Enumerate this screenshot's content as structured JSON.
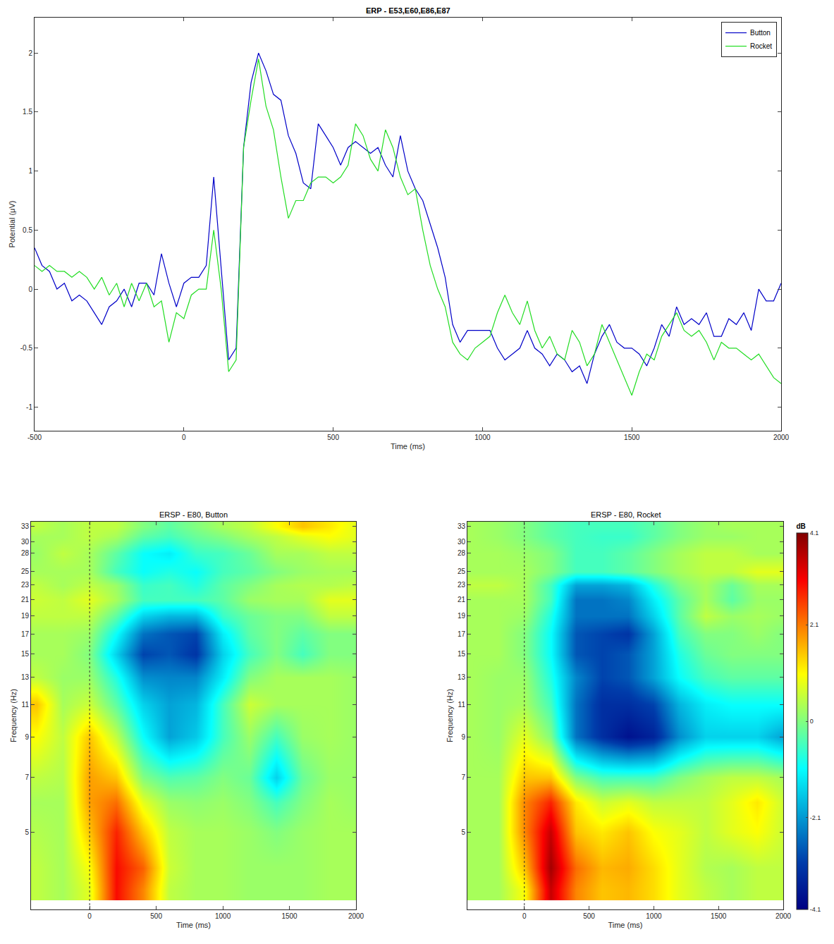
{
  "chart_data": [
    {
      "type": "line",
      "title": "ERP - E53,E60,E86,E87",
      "x_label": "Time (ms)",
      "y_label": "Potential (μV)",
      "x": [
        -500,
        -475,
        -450,
        -425,
        -400,
        -375,
        -350,
        -325,
        -300,
        -275,
        -250,
        -225,
        -200,
        -175,
        -150,
        -125,
        -100,
        -75,
        -50,
        -25,
        0,
        25,
        50,
        75,
        100,
        125,
        150,
        175,
        200,
        225,
        250,
        275,
        300,
        325,
        350,
        375,
        400,
        425,
        450,
        475,
        500,
        525,
        550,
        575,
        600,
        625,
        650,
        675,
        700,
        725,
        750,
        775,
        800,
        825,
        850,
        875,
        900,
        925,
        950,
        975,
        1000,
        1025,
        1050,
        1075,
        1100,
        1125,
        1150,
        1175,
        1200,
        1225,
        1250,
        1275,
        1300,
        1325,
        1350,
        1375,
        1400,
        1425,
        1450,
        1475,
        1500,
        1525,
        1550,
        1575,
        1600,
        1625,
        1650,
        1675,
        1700,
        1725,
        1750,
        1775,
        1800,
        1825,
        1850,
        1875,
        1900,
        1925,
        1950,
        1975,
        2000
      ],
      "series": [
        {
          "name": "Button",
          "color": "#0000c8",
          "values": [
            0.35,
            0.2,
            0.15,
            0.0,
            0.05,
            -0.1,
            -0.05,
            -0.1,
            -0.2,
            -0.3,
            -0.15,
            -0.1,
            0.0,
            -0.15,
            0.05,
            0.05,
            -0.05,
            0.3,
            0.05,
            -0.15,
            0.05,
            0.1,
            0.1,
            0.2,
            0.95,
            0.2,
            -0.6,
            -0.5,
            1.2,
            1.75,
            2.0,
            1.85,
            1.65,
            1.6,
            1.3,
            1.15,
            0.9,
            0.85,
            1.4,
            1.3,
            1.2,
            1.05,
            1.2,
            1.25,
            1.2,
            1.15,
            1.2,
            1.05,
            0.95,
            1.3,
            1.0,
            0.85,
            0.75,
            0.55,
            0.35,
            0.1,
            -0.3,
            -0.45,
            -0.35,
            -0.35,
            -0.35,
            -0.35,
            -0.5,
            -0.6,
            -0.55,
            -0.5,
            -0.35,
            -0.5,
            -0.55,
            -0.65,
            -0.55,
            -0.6,
            -0.7,
            -0.65,
            -0.8,
            -0.55,
            -0.4,
            -0.3,
            -0.45,
            -0.5,
            -0.5,
            -0.55,
            -0.65,
            -0.5,
            -0.3,
            -0.4,
            -0.15,
            -0.3,
            -0.25,
            -0.3,
            -0.2,
            -0.4,
            -0.4,
            -0.25,
            -0.3,
            -0.2,
            -0.35,
            0.0,
            -0.1,
            -0.1,
            0.05
          ]
        },
        {
          "name": "Rocket",
          "color": "#22dd22",
          "values": [
            0.2,
            0.15,
            0.2,
            0.15,
            0.15,
            0.1,
            0.15,
            0.1,
            0.0,
            0.1,
            -0.05,
            0.05,
            -0.15,
            0.05,
            -0.1,
            0.05,
            -0.15,
            -0.1,
            -0.45,
            -0.2,
            -0.25,
            -0.05,
            0.0,
            0.0,
            0.5,
            0.0,
            -0.7,
            -0.6,
            1.2,
            1.6,
            1.95,
            1.55,
            1.35,
            0.95,
            0.6,
            0.75,
            0.75,
            0.9,
            0.95,
            0.95,
            0.9,
            0.95,
            1.05,
            1.4,
            1.3,
            1.1,
            1.0,
            1.35,
            1.2,
            0.95,
            0.8,
            0.85,
            0.5,
            0.2,
            0.0,
            -0.15,
            -0.45,
            -0.55,
            -0.6,
            -0.5,
            -0.45,
            -0.4,
            -0.2,
            -0.05,
            -0.2,
            -0.3,
            -0.1,
            -0.35,
            -0.5,
            -0.4,
            -0.55,
            -0.6,
            -0.35,
            -0.45,
            -0.65,
            -0.55,
            -0.3,
            -0.45,
            -0.6,
            -0.75,
            -0.9,
            -0.7,
            -0.55,
            -0.6,
            -0.4,
            -0.3,
            -0.2,
            -0.35,
            -0.4,
            -0.35,
            -0.45,
            -0.6,
            -0.45,
            -0.5,
            -0.5,
            -0.55,
            -0.6,
            -0.55,
            -0.65,
            -0.75,
            -0.8
          ]
        }
      ],
      "xlim": [
        -500,
        2000
      ],
      "xticks": [
        -500,
        0,
        500,
        1000,
        1500,
        2000
      ],
      "ylim": [
        -1.2,
        2.3
      ],
      "yticks": [
        -1,
        -0.5,
        0,
        0.5,
        1,
        1.5,
        2
      ],
      "legend": "top-right",
      "grid": false
    },
    {
      "type": "heatmap",
      "title": "ERSP - E80, Button",
      "x_label": "Time (ms)",
      "y_label": "Frequency (Hz)",
      "x": [
        -400,
        -200,
        0,
        200,
        400,
        600,
        800,
        1000,
        1200,
        1400,
        1600,
        1800,
        2000
      ],
      "y": [
        3.5,
        4,
        5,
        6,
        7,
        9,
        11,
        13,
        15,
        17,
        19,
        21,
        23,
        25,
        28,
        31,
        33
      ],
      "z": [
        [
          0.5,
          0.3,
          0.8,
          3.0,
          2.0,
          0.5,
          0.3,
          0.3,
          0.2,
          0.2,
          0.2,
          0.3,
          0.3
        ],
        [
          0.5,
          0.3,
          1.0,
          3.0,
          2.3,
          0.6,
          0.3,
          0.3,
          0.2,
          0.2,
          0.2,
          0.3,
          0.3
        ],
        [
          0.4,
          0.3,
          1.5,
          2.8,
          1.5,
          0.5,
          0.3,
          0.3,
          0.2,
          0.0,
          0.2,
          0.3,
          0.3
        ],
        [
          0.3,
          0.3,
          1.8,
          2.2,
          0.8,
          0.2,
          0.1,
          0.2,
          0.0,
          -0.5,
          0.0,
          0.3,
          0.2
        ],
        [
          0.5,
          0.4,
          1.8,
          1.5,
          0.0,
          -0.4,
          -0.3,
          0.0,
          -0.2,
          -1.5,
          -0.2,
          0.2,
          0.2
        ],
        [
          1.0,
          0.5,
          1.5,
          0.5,
          -1.0,
          -2.0,
          -1.6,
          -0.5,
          0.2,
          -0.5,
          0.2,
          0.3,
          0.2
        ],
        [
          1.5,
          0.3,
          0.6,
          -0.3,
          -1.5,
          -2.0,
          -1.8,
          -0.5,
          0.6,
          0.3,
          0.3,
          0.3,
          0.2
        ],
        [
          0.5,
          0.2,
          0.2,
          -0.8,
          -2.2,
          -2.3,
          -2.3,
          -1.2,
          0.0,
          0.3,
          0.3,
          0.3,
          0.2
        ],
        [
          0.3,
          0.3,
          0.0,
          -1.5,
          -3.0,
          -2.8,
          -3.2,
          -1.5,
          -0.5,
          0.0,
          -0.5,
          0.0,
          0.0
        ],
        [
          0.3,
          0.3,
          0.2,
          -1.0,
          -2.5,
          -2.8,
          -3.0,
          -1.2,
          -0.3,
          0.0,
          -0.3,
          0.0,
          0.0
        ],
        [
          0.5,
          0.5,
          0.5,
          -0.3,
          -1.5,
          -1.8,
          -1.8,
          -0.6,
          -0.2,
          0.0,
          0.0,
          0.5,
          0.5
        ],
        [
          0.6,
          0.5,
          0.8,
          0.3,
          -0.5,
          -0.5,
          -0.5,
          -0.3,
          0.2,
          0.3,
          0.3,
          0.8,
          0.8
        ],
        [
          0.5,
          0.3,
          0.5,
          0.2,
          -0.6,
          -0.5,
          -0.8,
          -0.3,
          0.0,
          0.3,
          0.4,
          0.4,
          0.5
        ],
        [
          0.3,
          0.3,
          0.3,
          -0.5,
          -1.0,
          -0.8,
          -1.0,
          -0.5,
          -0.3,
          0.0,
          0.2,
          0.3,
          0.3
        ],
        [
          0.2,
          0.5,
          0.3,
          -0.3,
          -1.0,
          -1.2,
          -0.6,
          -0.5,
          -0.2,
          0.3,
          0.3,
          0.5,
          0.5
        ],
        [
          0.3,
          0.3,
          0.5,
          0.3,
          -0.3,
          -0.5,
          -0.2,
          0.0,
          0.3,
          0.5,
          0.8,
          1.0,
          0.8
        ],
        [
          0.5,
          0.3,
          0.5,
          0.5,
          0.0,
          -0.3,
          0.0,
          0.3,
          0.5,
          1.0,
          1.5,
          1.2,
          0.8
        ]
      ],
      "xlim": [
        -440,
        2000
      ],
      "xticks": [
        0,
        500,
        1000,
        1500,
        2000
      ],
      "ylim": [
        3.1,
        34
      ],
      "yticks": [
        5,
        7,
        9,
        11,
        13,
        15,
        17,
        19,
        21,
        23,
        25,
        28,
        30,
        33
      ],
      "log": "y",
      "events": [
        0
      ],
      "colorbar": {
        "range": [
          -4.1,
          4.1
        ]
      }
    },
    {
      "type": "heatmap",
      "title": "ERSP - E80, Rocket",
      "x_label": "Time (ms)",
      "y_label": "Frequency (Hz)",
      "x": [
        -400,
        -200,
        0,
        200,
        400,
        600,
        800,
        1000,
        1200,
        1400,
        1600,
        1800,
        2000
      ],
      "y": [
        3.5,
        4,
        5,
        6,
        7,
        9,
        11,
        13,
        15,
        17,
        19,
        21,
        23,
        25,
        28,
        31,
        33
      ],
      "z": [
        [
          0.3,
          0.3,
          1.0,
          3.5,
          2.0,
          1.5,
          1.6,
          1.3,
          0.8,
          0.5,
          0.3,
          0.5,
          0.5
        ],
        [
          0.3,
          0.3,
          1.5,
          3.8,
          2.2,
          1.6,
          1.7,
          1.3,
          0.8,
          0.4,
          0.3,
          0.5,
          0.5
        ],
        [
          0.3,
          0.3,
          2.0,
          3.5,
          1.5,
          1.2,
          1.5,
          1.0,
          0.8,
          0.5,
          0.8,
          1.0,
          0.6
        ],
        [
          0.3,
          0.3,
          2.0,
          2.8,
          1.2,
          0.6,
          0.8,
          0.5,
          0.5,
          0.5,
          0.8,
          1.2,
          0.6
        ],
        [
          0.3,
          0.3,
          1.5,
          1.5,
          0.0,
          -0.5,
          -0.5,
          -0.5,
          0.0,
          0.3,
          0.5,
          0.5,
          0.3
        ],
        [
          0.3,
          0.2,
          0.8,
          0.0,
          -2.5,
          -3.3,
          -3.8,
          -3.5,
          -2.2,
          -1.5,
          -1.5,
          -1.5,
          -2.0
        ],
        [
          0.3,
          0.2,
          0.3,
          -0.5,
          -2.5,
          -3.3,
          -3.3,
          -3.0,
          -1.8,
          -1.2,
          -1.0,
          -1.0,
          -1.0
        ],
        [
          0.3,
          0.2,
          0.2,
          -0.8,
          -2.3,
          -3.0,
          -2.8,
          -2.0,
          -1.0,
          -0.5,
          -0.3,
          -0.3,
          -0.3
        ],
        [
          0.3,
          0.3,
          0.0,
          -1.0,
          -2.8,
          -3.0,
          -2.8,
          -2.0,
          -0.8,
          -0.2,
          0.0,
          0.0,
          0.0
        ],
        [
          0.3,
          0.3,
          0.0,
          -1.0,
          -2.8,
          -3.0,
          -3.2,
          -2.0,
          -0.5,
          0.0,
          0.0,
          0.2,
          0.0
        ],
        [
          0.3,
          0.3,
          0.2,
          -0.8,
          -2.5,
          -2.5,
          -2.5,
          -1.5,
          -0.3,
          0.5,
          0.2,
          0.3,
          0.2
        ],
        [
          0.3,
          0.3,
          0.3,
          -0.5,
          -2.5,
          -2.5,
          -2.3,
          -1.2,
          -0.3,
          0.3,
          -0.3,
          0.2,
          0.2
        ],
        [
          0.5,
          0.5,
          0.3,
          -0.5,
          -2.0,
          -2.0,
          -1.8,
          -0.8,
          0.0,
          0.3,
          -0.2,
          0.3,
          0.3
        ],
        [
          0.3,
          0.3,
          0.3,
          0.0,
          -0.5,
          -0.5,
          -0.3,
          0.0,
          0.3,
          0.5,
          0.5,
          0.8,
          0.8
        ],
        [
          0.3,
          0.3,
          0.2,
          0.0,
          -0.5,
          -0.5,
          -0.3,
          0.0,
          0.3,
          0.5,
          0.5,
          0.3,
          0.3
        ],
        [
          0.3,
          0.2,
          0.0,
          -0.3,
          -0.5,
          -0.6,
          -0.6,
          -0.3,
          0.0,
          0.2,
          0.2,
          0.3,
          0.3
        ],
        [
          0.3,
          0.2,
          0.0,
          -0.3,
          -0.5,
          -0.5,
          -0.5,
          -0.3,
          0.0,
          0.2,
          0.3,
          0.3,
          0.3
        ]
      ],
      "xlim": [
        -440,
        2000
      ],
      "xticks": [
        0,
        500,
        1000,
        1500,
        2000
      ],
      "ylim": [
        3.1,
        34
      ],
      "yticks": [
        5,
        7,
        9,
        11,
        13,
        15,
        17,
        19,
        21,
        23,
        25,
        28,
        30,
        33
      ],
      "log": "y",
      "events": [
        0
      ],
      "colorbar": {
        "title": "dB",
        "range": [
          -4.1,
          4.1
        ],
        "ticks": [
          -4.1,
          -2.1,
          0,
          2.1,
          4.1
        ]
      }
    }
  ]
}
